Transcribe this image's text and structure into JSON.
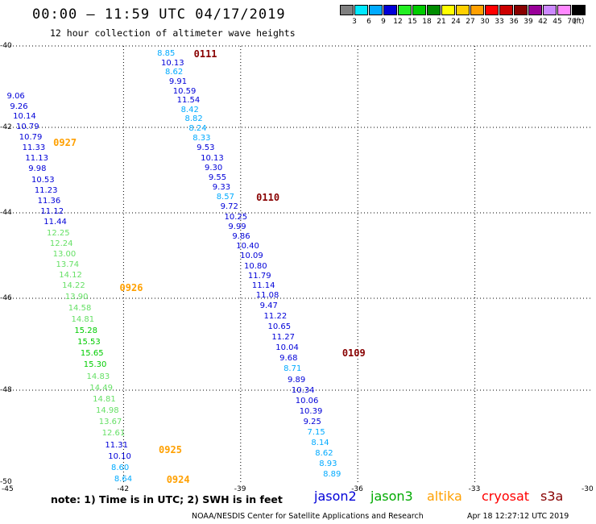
{
  "header": {
    "title": "00:00 – 11:59 UTC 04/17/2019",
    "subtitle": "12 hour collection of altimeter wave heights"
  },
  "colorbar": {
    "boxes": [
      "#808080",
      "#00e8ff",
      "#00aaff",
      "#0000d8",
      "#22ee22",
      "#00cc00",
      "#008c00",
      "#ffff00",
      "#ffd000",
      "#ffa000",
      "#ff0000",
      "#cc0000",
      "#880000",
      "#990099",
      "#cc88ff",
      "#ff88ff",
      "#000000"
    ],
    "labels": [
      "3",
      "6",
      "9",
      "12",
      "15",
      "18",
      "21",
      "24",
      "27",
      "30",
      "33",
      "36",
      "39",
      "42",
      "45",
      "70"
    ],
    "unit": "(ft)"
  },
  "axes": {
    "lon_labels": [
      "-45",
      "-42",
      "-39",
      "-36",
      "-33",
      "-30"
    ],
    "lat_labels": [
      "-40",
      "-42",
      "-44",
      "-46",
      "-48",
      "-50"
    ],
    "lon_range": [
      -45,
      -30
    ],
    "lat_range": [
      -50,
      -40
    ]
  },
  "passes": [
    {
      "label": "0111",
      "color": "#880000",
      "lon": -40.2,
      "lat": -40.2
    },
    {
      "label": "0927",
      "color": "#ffa000",
      "lon": -43.8,
      "lat": -42.35
    },
    {
      "label": "0110",
      "color": "#880000",
      "lon": -38.6,
      "lat": -43.65
    },
    {
      "label": "0926",
      "color": "#ffa000",
      "lon": -42.1,
      "lat": -45.75
    },
    {
      "label": "0109",
      "color": "#880000",
      "lon": -36.4,
      "lat": -47.2
    },
    {
      "label": "0925",
      "color": "#ffa000",
      "lon": -41.1,
      "lat": -49.3
    },
    {
      "label": "0924",
      "color": "#ffa000",
      "lon": -40.9,
      "lat": -49.95
    }
  ],
  "tracks": [
    {
      "name": "pass-0927-0924",
      "lon_start": -44.7,
      "lat_start": -41.25,
      "lon_end": -41.95,
      "lat_end": -49.95,
      "values": [
        "9.06",
        "9.26",
        "10.14",
        "10.79",
        "10.79",
        "11.33",
        "11.13",
        "9.98",
        "10.53",
        "11.23",
        "11.36",
        "11.12",
        "11.44",
        "12.25",
        "12.24",
        "13.00",
        "13.74",
        "14.12",
        "14.22",
        "13.90",
        "14.58",
        "14.81",
        "15.28",
        "15.53",
        "15.65",
        "15.30",
        "14.83",
        "14.49",
        "14.81",
        "14.98",
        "13.67",
        "12.61",
        "11.31",
        "10.10",
        "8.60",
        "8.64"
      ]
    },
    {
      "name": "pass-0111-0109",
      "lon_start": -40.85,
      "lat_start": -40.2,
      "lon_end": -36.6,
      "lat_end": -49.85,
      "values": [
        "8.85",
        "10.13",
        "8.62",
        "9.91",
        "10.59",
        "11.54",
        "8.42",
        "8.82",
        "8.24",
        "8.33",
        "9.53",
        "10.13",
        "9.30",
        "9.55",
        "9.33",
        "8.57",
        "9.72",
        "10.25",
        "9.99",
        "9.86",
        "10.40",
        "10.09",
        "10.80",
        "11.79",
        "11.14",
        "11.08",
        "9.47",
        "11.22",
        "10.65",
        "11.27",
        "10.04",
        "9.68",
        "8.71",
        "9.89",
        "10.34",
        "10.06",
        "10.39",
        "9.25",
        "7.15",
        "8.14",
        "8.62",
        "8.93",
        "8.89"
      ]
    }
  ],
  "footer": {
    "note": "note: 1) Time is in UTC; 2) SWH is in feet",
    "legend": [
      {
        "label": "jason2",
        "color": "#0000d8"
      },
      {
        "label": "jason3",
        "color": "#00aa00"
      },
      {
        "label": "altika",
        "color": "#ffa000"
      },
      {
        "label": "cryosat",
        "color": "#ff0000"
      },
      {
        "label": "s3a",
        "color": "#880000"
      }
    ],
    "credit": "NOAA/NESDIS Center for Satellite Applications and Research",
    "timestamp": "Apr 18 12:27:12 UTC 2019"
  }
}
